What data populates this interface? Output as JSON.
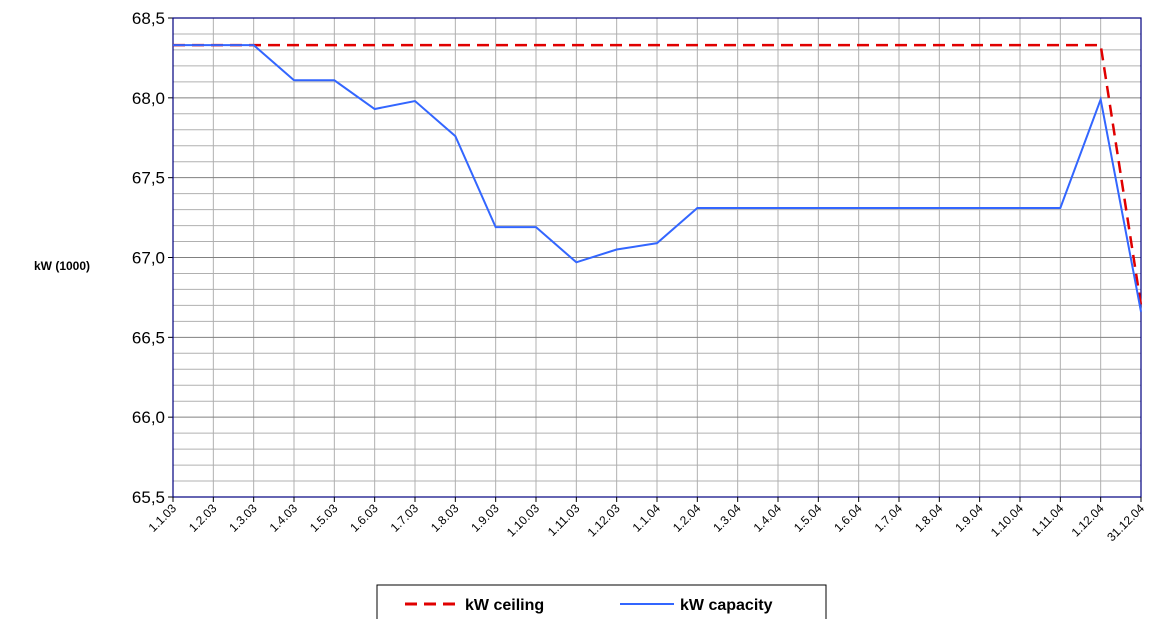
{
  "chart_data": {
    "type": "line",
    "y_label": "kW (1000)",
    "categories": [
      "1.1.03",
      "1.2.03",
      "1.3.03",
      "1.4.03",
      "1.5.03",
      "1.6.03",
      "1.7.03",
      "1.8.03",
      "1.9.03",
      "1.10.03",
      "1.11.03",
      "1.12.03",
      "1.1.04",
      "1.2.04",
      "1.3.04",
      "1.4.04",
      "1.5.04",
      "1.6.04",
      "1.7.04",
      "1.8.04",
      "1.9.04",
      "1.10.04",
      "1.11.04",
      "1.12.04",
      "31.12.04"
    ],
    "series": [
      {
        "name": "kW ceiling",
        "color": "#e00000",
        "dash": true,
        "values": [
          68.33,
          68.33,
          68.33,
          68.33,
          68.33,
          68.33,
          68.33,
          68.33,
          68.33,
          68.33,
          68.33,
          68.33,
          68.33,
          68.33,
          68.33,
          68.33,
          68.33,
          68.33,
          68.33,
          68.33,
          68.33,
          68.33,
          68.33,
          68.33,
          66.7
        ]
      },
      {
        "name": "kW capacity",
        "color": "#3366ff",
        "dash": false,
        "values": [
          68.33,
          68.33,
          68.33,
          68.11,
          68.11,
          67.93,
          67.98,
          67.76,
          67.19,
          67.19,
          66.97,
          67.05,
          67.09,
          67.31,
          67.31,
          67.31,
          67.31,
          67.31,
          67.31,
          67.31,
          67.31,
          67.31,
          67.31,
          67.99,
          66.66
        ]
      }
    ],
    "ylim": [
      65.5,
      68.5
    ],
    "yticks": [
      {
        "value": 65.5,
        "label": "65,5"
      },
      {
        "value": 66,
        "label": "66,0"
      },
      {
        "value": 66.5,
        "label": "66,5"
      },
      {
        "value": 67,
        "label": "67,0"
      },
      {
        "value": 67.5,
        "label": "67,5"
      },
      {
        "value": 68,
        "label": "68,0"
      },
      {
        "value": 68.5,
        "label": "68,5"
      }
    ],
    "yminorticks": [
      65.6,
      65.7,
      65.8,
      65.9,
      66.1,
      66.2,
      66.3,
      66.4,
      66.6,
      66.7,
      66.8,
      66.9,
      67.1,
      67.2,
      67.3,
      67.4,
      67.6,
      67.7,
      67.8,
      67.9,
      68.1,
      68.2,
      68.3,
      68.4
    ],
    "grid": true
  }
}
